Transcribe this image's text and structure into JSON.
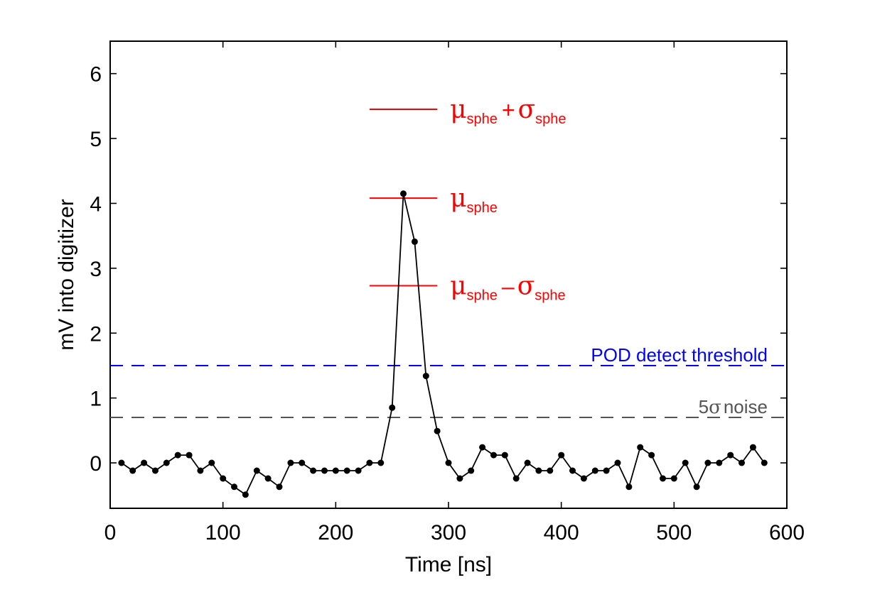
{
  "chart_data": {
    "type": "line",
    "title": "",
    "xlabel": "Time [ns]",
    "ylabel": "mV into digitizer",
    "xlim": [
      0,
      600
    ],
    "ylim": [
      -0.7,
      6.5
    ],
    "grid": false,
    "xticks": [
      0,
      100,
      200,
      300,
      400,
      500,
      600
    ],
    "yticks": [
      0,
      1,
      2,
      3,
      4,
      5,
      6
    ],
    "series": [
      {
        "color": "#000000",
        "marker": "circle",
        "points": [
          [
            10,
            0.0
          ],
          [
            20,
            -0.12
          ],
          [
            30,
            0.0
          ],
          [
            40,
            -0.12
          ],
          [
            50,
            0.0
          ],
          [
            60,
            0.12
          ],
          [
            70,
            0.12
          ],
          [
            80,
            -0.12
          ],
          [
            90,
            0.0
          ],
          [
            100,
            -0.24
          ],
          [
            110,
            -0.37
          ],
          [
            120,
            -0.49
          ],
          [
            130,
            -0.12
          ],
          [
            140,
            -0.24
          ],
          [
            150,
            -0.37
          ],
          [
            160,
            0.0
          ],
          [
            170,
            0.0
          ],
          [
            180,
            -0.12
          ],
          [
            190,
            -0.12
          ],
          [
            200,
            -0.12
          ],
          [
            210,
            -0.12
          ],
          [
            220,
            -0.12
          ],
          [
            230,
            0.0
          ],
          [
            240,
            0.0
          ],
          [
            250,
            0.85
          ],
          [
            260,
            4.15
          ],
          [
            270,
            3.41
          ],
          [
            280,
            1.34
          ],
          [
            290,
            0.49
          ],
          [
            300,
            0.0
          ],
          [
            310,
            -0.24
          ],
          [
            320,
            -0.12
          ],
          [
            330,
            0.24
          ],
          [
            340,
            0.12
          ],
          [
            350,
            0.12
          ],
          [
            360,
            -0.24
          ],
          [
            370,
            0.0
          ],
          [
            380,
            -0.12
          ],
          [
            390,
            -0.12
          ],
          [
            400,
            0.12
          ],
          [
            410,
            -0.12
          ],
          [
            420,
            -0.24
          ],
          [
            430,
            -0.12
          ],
          [
            440,
            -0.12
          ],
          [
            450,
            0.0
          ],
          [
            460,
            -0.37
          ],
          [
            470,
            0.24
          ],
          [
            480,
            0.12
          ],
          [
            490,
            -0.24
          ],
          [
            500,
            -0.24
          ],
          [
            510,
            0.0
          ],
          [
            520,
            -0.37
          ],
          [
            530,
            0.0
          ],
          [
            540,
            0.0
          ],
          [
            550,
            0.12
          ],
          [
            560,
            0.0
          ],
          [
            570,
            0.24
          ],
          [
            580,
            0.0
          ]
        ]
      }
    ],
    "reference_lines": [
      {
        "y": 1.5,
        "style": "dashed",
        "color": "#0000ff",
        "label": "POD detect threshold"
      },
      {
        "y": 0.7,
        "style": "dashed",
        "color": "#555555",
        "label_prefix": "5",
        "label_sigma": "σ",
        "label_suffix": "noise"
      }
    ],
    "sphe_markers": [
      {
        "y": 5.45,
        "x_range": [
          230,
          290
        ],
        "color": "#ff0000",
        "mu": "μ",
        "mu_sub": "sphe",
        "op": "+",
        "sigma": "σ",
        "sigma_sub": "sphe"
      },
      {
        "y": 4.08,
        "x_range": [
          230,
          290
        ],
        "color": "#ff0000",
        "mu": "μ",
        "mu_sub": "sphe"
      },
      {
        "y": 2.73,
        "x_range": [
          230,
          290
        ],
        "color": "#ff0000",
        "mu": "μ",
        "mu_sub": "sphe",
        "op": "–",
        "sigma": "σ",
        "sigma_sub": "sphe"
      }
    ]
  }
}
